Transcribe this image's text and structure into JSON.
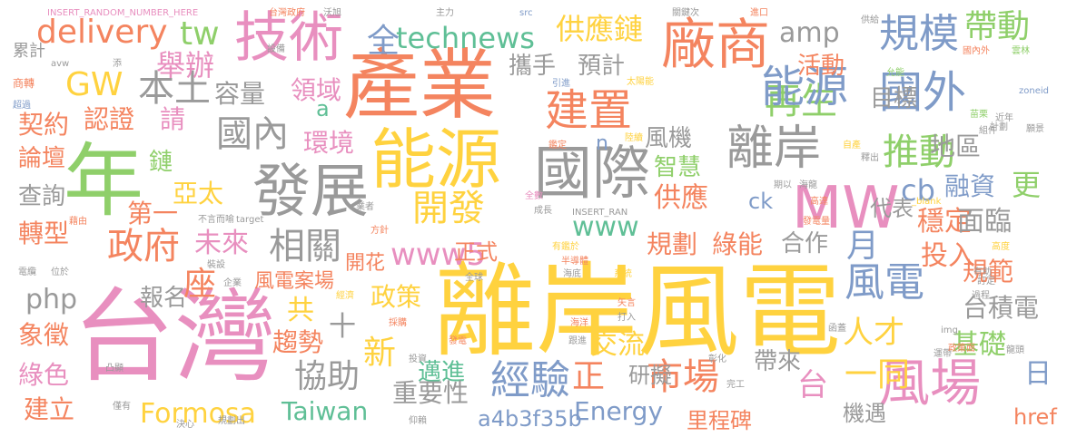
{
  "colors": {
    "orange": "#f4845f",
    "yellow": "#ffd23f",
    "gray": "#9a9a9a",
    "green": "#8fcf6a",
    "pink": "#e88fbf",
    "blue": "#7f9bc8",
    "teal": "#5fbf96"
  },
  "words": [
    {
      "text": "離岸風電",
      "color": "#ffd23f"
    },
    {
      "text": "台灣",
      "color": "#e88fbf"
    },
    {
      "text": "產業",
      "color": "#f4845f"
    },
    {
      "text": "能源",
      "color": "#ffd23f"
    },
    {
      "text": "年",
      "color": "#8fcf6a"
    },
    {
      "text": "發展",
      "color": "#9a9a9a"
    },
    {
      "text": "國際",
      "color": "#9a9a9a"
    },
    {
      "text": "技術",
      "color": "#e88fbf"
    },
    {
      "text": "廠商",
      "color": "#f4845f"
    },
    {
      "text": "MW",
      "color": "#e88fbf"
    },
    {
      "text": "風場",
      "color": "#e88fbf"
    },
    {
      "text": "離岸",
      "color": "#9a9a9a"
    },
    {
      "text": "國外",
      "color": "#7f9bc8"
    },
    {
      "text": "規模",
      "color": "#7f9bc8"
    },
    {
      "text": "再生",
      "color": "#8fcf6a"
    },
    {
      "text": "能源",
      "color": "#7f9bc8"
    },
    {
      "text": "建置",
      "color": "#f4845f"
    },
    {
      "text": "風電",
      "color": "#7f9bc8"
    },
    {
      "text": "政府",
      "color": "#f4845f"
    },
    {
      "text": "推動",
      "color": "#8fcf6a"
    },
    {
      "text": "經驗",
      "color": "#7f9bc8"
    },
    {
      "text": "市場",
      "color": "#f4845f"
    },
    {
      "text": "國內",
      "color": "#9a9a9a"
    },
    {
      "text": "開發",
      "color": "#ffd23f"
    },
    {
      "text": "相關",
      "color": "#9a9a9a"
    },
    {
      "text": "協助",
      "color": "#9a9a9a"
    },
    {
      "text": "本土",
      "color": "#9a9a9a"
    },
    {
      "text": "帶動",
      "color": "#8fcf6a"
    },
    {
      "text": "delivery",
      "color": "#f4845f"
    },
    {
      "text": "tw",
      "color": "#8fcf6a"
    },
    {
      "text": "technews",
      "color": "#5fbf96"
    },
    {
      "text": "供應鏈",
      "color": "#ffd23f"
    },
    {
      "text": "amp",
      "color": "#9a9a9a"
    },
    {
      "text": "舉辦",
      "color": "#e88fbf"
    },
    {
      "text": "GW",
      "color": "#ffd23f"
    },
    {
      "text": "攜手",
      "color": "#9a9a9a"
    },
    {
      "text": "預計",
      "color": "#9a9a9a"
    },
    {
      "text": "活動",
      "color": "#f4845f"
    },
    {
      "text": "全",
      "color": "#7f9bc8"
    },
    {
      "text": "容量",
      "color": "#9a9a9a"
    },
    {
      "text": "領域",
      "color": "#e88fbf"
    },
    {
      "text": "目標",
      "color": "#9a9a9a"
    },
    {
      "text": "契約",
      "color": "#f4845f"
    },
    {
      "text": "認證",
      "color": "#f4845f"
    },
    {
      "text": "請",
      "color": "#e88fbf"
    },
    {
      "text": "環境",
      "color": "#e88fbf"
    },
    {
      "text": "風機",
      "color": "#9a9a9a"
    },
    {
      "text": "智慧",
      "color": "#8fcf6a"
    },
    {
      "text": "論壇",
      "color": "#f4845f"
    },
    {
      "text": "鏈",
      "color": "#8fcf6a"
    },
    {
      "text": "地區",
      "color": "#9a9a9a"
    },
    {
      "text": "cb",
      "color": "#7f9bc8"
    },
    {
      "text": "融資",
      "color": "#7f9bc8"
    },
    {
      "text": "更",
      "color": "#8fcf6a"
    },
    {
      "text": "查詢",
      "color": "#9a9a9a"
    },
    {
      "text": "亞太",
      "color": "#ffd23f"
    },
    {
      "text": "第一",
      "color": "#f4845f"
    },
    {
      "text": "代表",
      "color": "#9a9a9a"
    },
    {
      "text": "供應",
      "color": "#f4845f"
    },
    {
      "text": "ck",
      "color": "#7f9bc8"
    },
    {
      "text": "穩定",
      "color": "#f4845f"
    },
    {
      "text": "面臨",
      "color": "#9a9a9a"
    },
    {
      "text": "轉型",
      "color": "#f4845f"
    },
    {
      "text": "未來",
      "color": "#e88fbf"
    },
    {
      "text": "www5",
      "color": "#e88fbf"
    },
    {
      "text": "www",
      "color": "#5fbf96"
    },
    {
      "text": "規劃",
      "color": "#f4845f"
    },
    {
      "text": "綠能",
      "color": "#f4845f"
    },
    {
      "text": "合作",
      "color": "#9a9a9a"
    },
    {
      "text": "月",
      "color": "#7f9bc8"
    },
    {
      "text": "投入",
      "color": "#f4845f"
    },
    {
      "text": "規範",
      "color": "#f4845f"
    },
    {
      "text": "座",
      "color": "#f4845f"
    },
    {
      "text": "開花",
      "color": "#f4845f"
    },
    {
      "text": "正式",
      "color": "#f4845f"
    },
    {
      "text": "php",
      "color": "#9a9a9a"
    },
    {
      "text": "報名",
      "color": "#9a9a9a"
    },
    {
      "text": "風電案場",
      "color": "#f4845f"
    },
    {
      "text": "政策",
      "color": "#ffd23f"
    },
    {
      "text": "台積電",
      "color": "#9a9a9a"
    },
    {
      "text": "共",
      "color": "#ffd23f"
    },
    {
      "text": "十",
      "color": "#9a9a9a"
    },
    {
      "text": "新",
      "color": "#ffd23f"
    },
    {
      "text": "人才",
      "color": "#ffd23f"
    },
    {
      "text": "象徵",
      "color": "#f4845f"
    },
    {
      "text": "趨勢",
      "color": "#f4845f"
    },
    {
      "text": "交流",
      "color": "#ffd23f"
    },
    {
      "text": "基礎",
      "color": "#8fcf6a"
    },
    {
      "text": "綠色",
      "color": "#e88fbf"
    },
    {
      "text": "邁進",
      "color": "#5fbf96"
    },
    {
      "text": "正",
      "color": "#f4845f"
    },
    {
      "text": "研擬",
      "color": "#9a9a9a"
    },
    {
      "text": "帶來",
      "color": "#9a9a9a"
    },
    {
      "text": "一同",
      "color": "#ffd23f"
    },
    {
      "text": "日",
      "color": "#7f9bc8"
    },
    {
      "text": "重要性",
      "color": "#9a9a9a"
    },
    {
      "text": "台",
      "color": "#e88fbf"
    },
    {
      "text": "建立",
      "color": "#f4845f"
    },
    {
      "text": "Formosa",
      "color": "#ffd23f"
    },
    {
      "text": "Taiwan",
      "color": "#5fbf96"
    },
    {
      "text": "a4b3f35b",
      "color": "#7f9bc8"
    },
    {
      "text": "Energy",
      "color": "#7f9bc8"
    },
    {
      "text": "機遇",
      "color": "#9a9a9a"
    },
    {
      "text": "里程碑",
      "color": "#f4845f"
    },
    {
      "text": "href",
      "color": "#f4845f"
    },
    {
      "text": "a",
      "color": "#5fbf96"
    },
    {
      "text": "n",
      "color": "#7f9bc8"
    },
    {
      "text": "INSERT_RANDOM_NUMBER_HERE",
      "color": "#e88fbf"
    },
    {
      "text": "主力",
      "color": "#9a9a9a"
    },
    {
      "text": "src",
      "color": "#7f9bc8"
    },
    {
      "text": "關鍵次",
      "color": "#9a9a9a"
    },
    {
      "text": "進口",
      "color": "#f4845f"
    },
    {
      "text": "供給",
      "color": "#9a9a9a"
    },
    {
      "text": "國內外",
      "color": "#f4845f"
    },
    {
      "text": "雲林",
      "color": "#8fcf6a"
    },
    {
      "text": "允能",
      "color": "#8fcf6a"
    },
    {
      "text": "台灣政府",
      "color": "#f4845f"
    },
    {
      "text": "沃旭",
      "color": "#9a9a9a"
    },
    {
      "text": "設備",
      "color": "#9a9a9a"
    },
    {
      "text": "累計",
      "color": "#9a9a9a"
    },
    {
      "text": "商轉",
      "color": "#f4845f"
    },
    {
      "text": "超過",
      "color": "#7f9bc8"
    },
    {
      "text": "引進",
      "color": "#7f9bc8"
    },
    {
      "text": "太陽能",
      "color": "#ffd23f"
    },
    {
      "text": "zoneid",
      "color": "#7f9bc8"
    },
    {
      "text": "苗栗",
      "color": "#8fcf6a"
    },
    {
      "text": "近年",
      "color": "#9a9a9a"
    },
    {
      "text": "組件",
      "color": "#9a9a9a"
    },
    {
      "text": "願景",
      "color": "#9a9a9a"
    },
    {
      "text": "計劃",
      "color": "#9a9a9a"
    },
    {
      "text": "鑑定",
      "color": "#f4845f"
    },
    {
      "text": "陸續",
      "color": "#ffd23f"
    },
    {
      "text": "自產",
      "color": "#ffd23f"
    },
    {
      "text": "釋出",
      "color": "#9a9a9a"
    },
    {
      "text": "海龍",
      "color": "#9a9a9a"
    },
    {
      "text": "期以",
      "color": "#9a9a9a"
    },
    {
      "text": "全數",
      "color": "#e88fbf"
    },
    {
      "text": "業者",
      "color": "#9a9a9a"
    },
    {
      "text": "成長",
      "color": "#9a9a9a"
    },
    {
      "text": "INSERT_RAN",
      "color": "#9a9a9a"
    },
    {
      "text": "_blank",
      "color": "#ffd23f"
    },
    {
      "text": "高達",
      "color": "#f4845f"
    },
    {
      "text": "發電量",
      "color": "#f4845f"
    },
    {
      "text": "方針",
      "color": "#f4845f"
    },
    {
      "text": "有鑑於",
      "color": "#ffd23f"
    },
    {
      "text": "半導體",
      "color": "#f4845f"
    },
    {
      "text": "海底",
      "color": "#9a9a9a"
    },
    {
      "text": "裝設",
      "color": "#9a9a9a"
    },
    {
      "text": "企業",
      "color": "#9a9a9a"
    },
    {
      "text": "全球",
      "color": "#9a9a9a"
    },
    {
      "text": "系統",
      "color": "#ffd23f"
    },
    {
      "text": "經濟",
      "color": "#ffd23f"
    },
    {
      "text": "矢言",
      "color": "#f4845f"
    },
    {
      "text": "打入",
      "color": "#9a9a9a"
    },
    {
      "text": "海洋",
      "color": "#f4845f"
    },
    {
      "text": "採購",
      "color": "#f4845f"
    },
    {
      "text": "跟進",
      "color": "#9a9a9a"
    },
    {
      "text": "發電",
      "color": "#f4845f"
    },
    {
      "text": "投資",
      "color": "#9a9a9a"
    },
    {
      "text": "彰化",
      "color": "#9a9a9a"
    },
    {
      "text": "完工",
      "color": "#9a9a9a"
    },
    {
      "text": "仰賴",
      "color": "#9a9a9a"
    },
    {
      "text": "決心",
      "color": "#9a9a9a"
    },
    {
      "text": "規劃出",
      "color": "#9a9a9a"
    },
    {
      "text": "僅有",
      "color": "#9a9a9a"
    },
    {
      "text": "凸顯",
      "color": "#9a9a9a"
    },
    {
      "text": "電纜",
      "color": "#9a9a9a"
    },
    {
      "text": "位於",
      "color": "#9a9a9a"
    },
    {
      "text": "藉由",
      "color": "#f4845f"
    },
    {
      "text": "不言而喻",
      "color": "#9a9a9a"
    },
    {
      "text": "target",
      "color": "#9a9a9a"
    },
    {
      "text": "高度",
      "color": "#ffd23f"
    },
    {
      "text": "有助",
      "color": "#9a9a9a"
    },
    {
      "text": "訂定",
      "color": "#9a9a9a"
    },
    {
      "text": "過程",
      "color": "#9a9a9a"
    },
    {
      "text": "函蓋",
      "color": "#9a9a9a"
    },
    {
      "text": "img",
      "color": "#9a9a9a"
    },
    {
      "text": "運帶",
      "color": "#9a9a9a"
    },
    {
      "text": "政策面",
      "color": "#f4845f"
    },
    {
      "text": "龍頭",
      "color": "#9a9a9a"
    },
    {
      "text": "avw",
      "color": "#9a9a9a"
    },
    {
      "text": "添",
      "color": "#9a9a9a"
    }
  ]
}
